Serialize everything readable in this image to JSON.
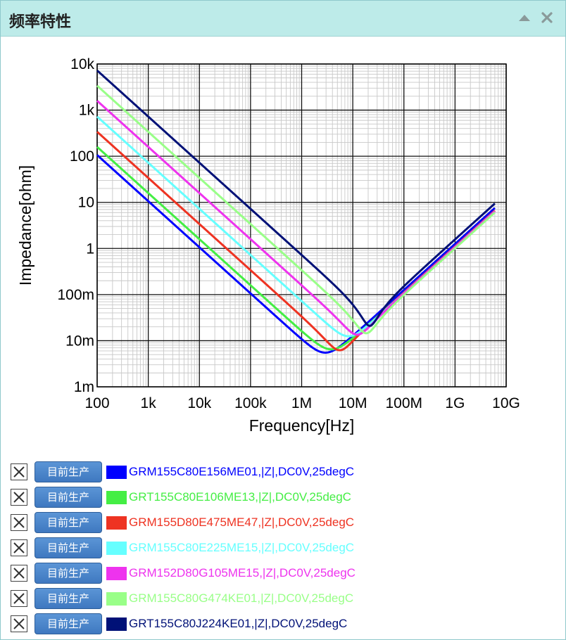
{
  "window": {
    "title": "频率特性",
    "collapse_icon": "triangle-up-icon",
    "close_icon": "close-x-icon"
  },
  "chart_data": {
    "type": "line",
    "title": "",
    "xlabel": "Frequency[Hz]",
    "ylabel": "Impedance[ohm]",
    "xscale": "log",
    "yscale": "log",
    "xlim": [
      100,
      10000000000
    ],
    "ylim": [
      0.001,
      10000
    ],
    "grid": true,
    "xticks": [
      100,
      1000,
      10000,
      100000,
      1000000,
      10000000,
      100000000,
      1000000000,
      10000000000
    ],
    "xtick_labels": [
      "100",
      "1k",
      "10k",
      "100k",
      "1M",
      "10M",
      "100M",
      "1G",
      "10G"
    ],
    "yticks": [
      0.001,
      0.01,
      0.1,
      1,
      10,
      100,
      1000,
      10000
    ],
    "ytick_labels": [
      "1m",
      "10m",
      "100m",
      "1",
      "10",
      "100",
      "1k",
      "10k"
    ],
    "series": [
      {
        "name": "GRM155C80E156ME01,|Z|,DC0V,25degC",
        "color": "#0000ff",
        "capacitance_F": 1.5e-05,
        "esr_ohm": 0.0055,
        "esl_H": 2e-10,
        "x_max": 6000000000
      },
      {
        "name": "GRT155C80E106ME13,|Z|,DC0V,25degC",
        "color": "#44ee44",
        "capacitance_F": 1e-05,
        "esr_ohm": 0.0065,
        "esl_H": 1.75e-10,
        "x_max": 6000000000
      },
      {
        "name": "GRM155D80E475ME47,|Z|,DC0V,25degC",
        "color": "#ee3322",
        "capacitance_F": 4.7e-06,
        "esr_ohm": 0.0062,
        "esl_H": 1.75e-10,
        "x_max": 6000000000
      },
      {
        "name": "GRM155C80E225ME15,|Z|,DC0V,25degC",
        "color": "#66ffff",
        "capacitance_F": 2.2e-06,
        "esr_ohm": 0.0125,
        "esl_H": 1.7e-10,
        "x_max": 6000000000
      },
      {
        "name": "GRM152D80G105ME15,|Z|,DC0V,25degC",
        "color": "#ee33ee",
        "capacitance_F": 1e-06,
        "esr_ohm": 0.0135,
        "esl_H": 1.7e-10,
        "x_max": 6000000000
      },
      {
        "name": "GRM155C80G474KE01,|Z|,DC0V,25degC",
        "color": "#99ff88",
        "capacitance_F": 4.7e-07,
        "esr_ohm": 0.0145,
        "esl_H": 1.6e-10,
        "x_max": 6000000000
      },
      {
        "name": "GRT155C80J224KE01,|Z|,DC0V,25degC",
        "color": "#001177",
        "capacitance_F": 2.2e-07,
        "esr_ohm": 0.021,
        "esl_H": 2.5e-10,
        "x_max": 6000000000
      }
    ]
  },
  "legend": {
    "button_label": "目前生产",
    "remove_icon": "checkbox-x-icon"
  }
}
